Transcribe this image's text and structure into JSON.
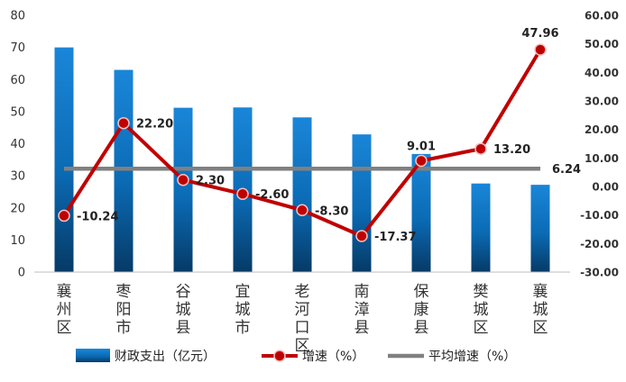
{
  "chart_data": {
    "type": "bar",
    "categories": [
      "襄州区",
      "枣阳市",
      "谷城县",
      "宜城市",
      "老河口区",
      "南漳县",
      "保康县",
      "樊城区",
      "襄城区"
    ],
    "series": [
      {
        "name": "财政支出（亿元）",
        "type": "bar",
        "axis": "left",
        "color": "#0a74c4",
        "values": [
          70,
          63,
          51.2,
          51.3,
          48.2,
          42.9,
          36.8,
          27.6,
          27.2
        ]
      },
      {
        "name": "增速（%）",
        "type": "line",
        "axis": "right",
        "color": "#c00000",
        "values": [
          -10.24,
          22.2,
          2.3,
          -2.6,
          -8.3,
          -17.37,
          9.01,
          13.2,
          47.96
        ],
        "labels": [
          "-10.24",
          "22.20",
          "2.30",
          "-2.60",
          "-8.30",
          "-17.37",
          "9.01",
          "13.20",
          "47.96"
        ]
      },
      {
        "name": "平均增速（%）",
        "type": "line",
        "axis": "right",
        "color": "#808080",
        "value": 6.24,
        "label": "6.24"
      }
    ],
    "y_left": {
      "range": [
        0,
        80
      ],
      "ticks": [
        "0",
        "10",
        "20",
        "30",
        "40",
        "50",
        "60",
        "70",
        "80"
      ]
    },
    "y_right": {
      "range": [
        -30,
        60
      ],
      "ticks": [
        "-30.00",
        "-20.00",
        "-10.00",
        "0.00",
        "10.00",
        "20.00",
        "30.00",
        "40.00",
        "50.00",
        "60.00"
      ]
    },
    "grid": false,
    "legend": "bottom"
  }
}
